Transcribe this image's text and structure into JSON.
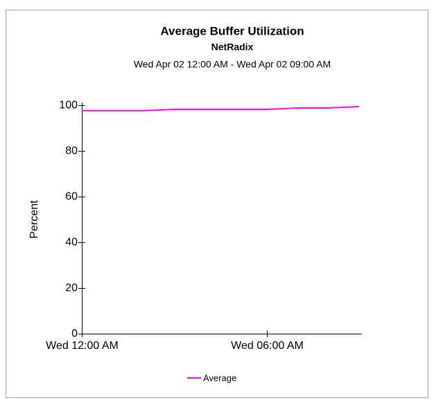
{
  "chart_data": {
    "type": "line",
    "title": "Average Buffer Utilization",
    "subtitle": "NetRadix",
    "date_range": "Wed Apr 02 12:00 AM - Wed Apr 02 09:00 AM",
    "ylabel": "Percent",
    "x": [
      0,
      1,
      2,
      3,
      4,
      5,
      6,
      7,
      8,
      9
    ],
    "series": [
      {
        "name": "Average",
        "color": "#ff00ff",
        "values": [
          97.6,
          97.6,
          97.6,
          98.2,
          98.2,
          98.2,
          98.2,
          98.8,
          98.8,
          99.4
        ]
      }
    ],
    "xlim": [
      0,
      9
    ],
    "xticks": [
      {
        "value": 0,
        "label": "Wed 12:00 AM"
      },
      {
        "value": 6,
        "label": "Wed 06:00 AM"
      }
    ],
    "ylim": [
      0,
      100
    ],
    "yticks": [
      0,
      20,
      40,
      60,
      80,
      100
    ],
    "grid": false,
    "legend": "bottom"
  }
}
